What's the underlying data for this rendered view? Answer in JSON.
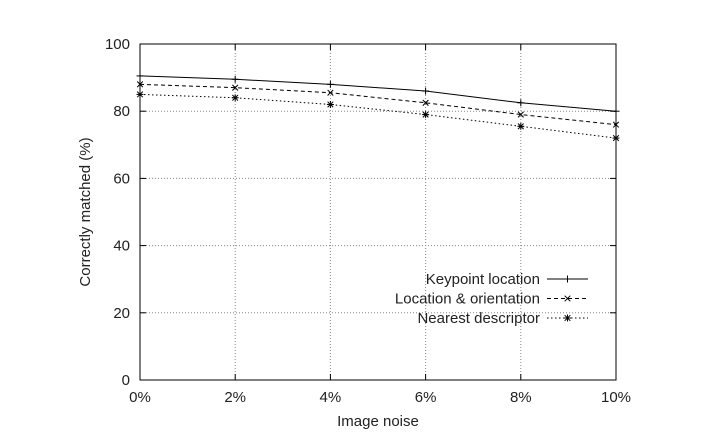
{
  "chart_data": {
    "type": "line",
    "x": [
      "0%",
      "2%",
      "4%",
      "6%",
      "8%",
      "10%"
    ],
    "xlabel": "Image noise",
    "ylabel": "Correctly matched (%)",
    "ylim": [
      0,
      100
    ],
    "yticks": [
      0,
      20,
      40,
      60,
      80,
      100
    ],
    "grid": true,
    "legend_position": "bottom-right",
    "series": [
      {
        "name": "Keypoint location",
        "values": [
          90.5,
          89.5,
          88.0,
          86.0,
          82.5,
          80.0
        ],
        "line_style": "solid",
        "marker": "+"
      },
      {
        "name": "Location & orientation",
        "values": [
          88.0,
          87.0,
          85.5,
          82.5,
          79.0,
          76.0
        ],
        "line_style": "dashed",
        "marker": "x"
      },
      {
        "name": "Nearest descriptor",
        "values": [
          85.0,
          84.0,
          82.0,
          79.0,
          75.5,
          72.0
        ],
        "line_style": "dotted",
        "marker": "*"
      }
    ]
  }
}
